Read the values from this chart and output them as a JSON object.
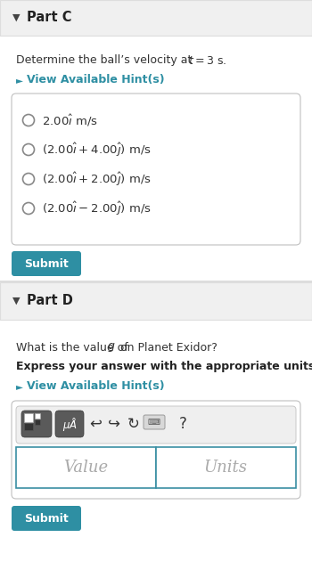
{
  "white": "#ffffff",
  "teal": "#2e8fa3",
  "dark_gray": "#333333",
  "header_bg": "#f0f0f0",
  "border_color": "#cccccc",
  "part_c_title": "Part C",
  "part_c_question_plain": "Determine the ball’s velocity at ",
  "part_c_question_math": "$t = 3$ s.",
  "hint_text": "View Available Hint(s)",
  "options": [
    "$2.00\\hat{\\imath}$ m/s",
    "$(2.00\\hat{\\imath} + 4.00\\hat{\\jmath})$ m/s",
    "$(2.00\\hat{\\imath} + 2.00\\hat{\\jmath})$ m/s",
    "$(2.00\\hat{\\imath} - 2.00\\hat{\\jmath})$ m/s"
  ],
  "submit_text": "Submit",
  "part_d_title": "Part D",
  "part_d_q1_plain": "What is the value of ",
  "part_d_q1_italic": "g",
  "part_d_q1_end": " on Planet Exidor?",
  "part_d_q2": "Express your answer with the appropriate units.",
  "value_placeholder": "Value",
  "units_placeholder": "Units"
}
